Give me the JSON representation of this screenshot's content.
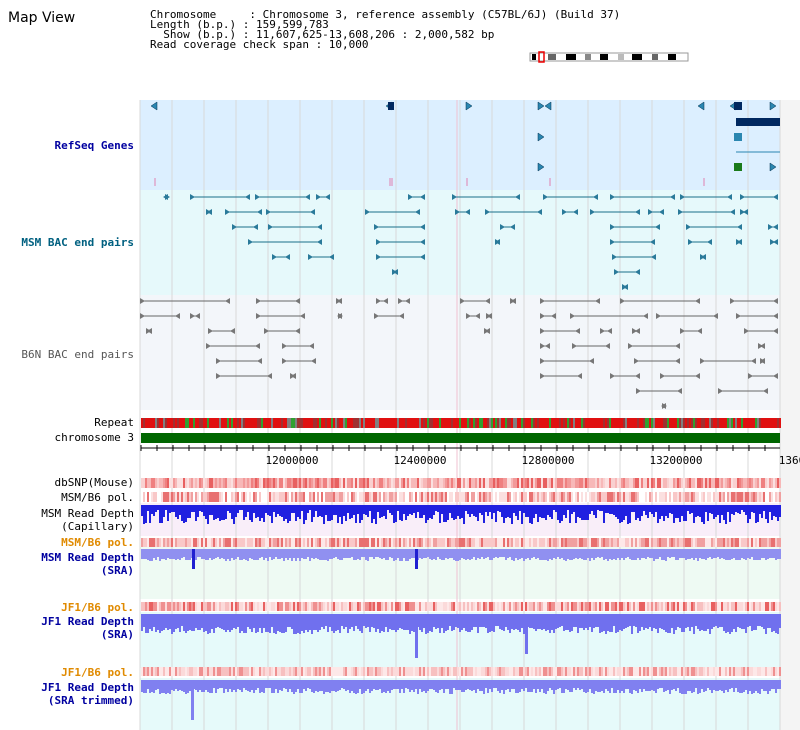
{
  "header": {
    "title": "Map View",
    "info_lines": [
      "Chromosome     : Chromosome 3, reference assembly (C57BL/6J) (Build 37)",
      "Length (b.p.) : 159,599,783",
      "  Show (b.p.) : 11,607,625-13,608,206 : 2,000,582 bp",
      "Read coverage check span : 10,000"
    ]
  },
  "tracks": {
    "refseq": "RefSeq Genes",
    "msm_bac": "MSM BAC end pairs",
    "b6n_bac": "B6N BAC end pairs",
    "repeat": "Repeat",
    "chromosome": "chromosome 3",
    "dbsnp": "dbSNP(Mouse)",
    "msm_b6_pol": "MSM/B6 pol.",
    "msm_read_depth_cap_1": "MSM Read Depth",
    "msm_read_depth_cap_2": "(Capillary)",
    "msm_b6_pol_2": "MSM/B6 pol.",
    "msm_read_depth_sra_1": "MSM Read Depth",
    "msm_read_depth_sra_2": "(SRA)",
    "jf1_b6_pol": "JF1/B6 pol.",
    "jf1_read_depth_sra_1": "JF1 Read Depth",
    "jf1_read_depth_sra_2": "(SRA)",
    "jf1_b6_pol_2": "JF1/B6 pol.",
    "jf1_read_depth_trim_1": "JF1 Read Depth",
    "jf1_read_depth_trim_2": "(SRA trimmed)"
  },
  "axis": {
    "ticks": [
      "12000000",
      "12400000",
      "12800000",
      "13200000",
      "1360"
    ]
  },
  "colors": {
    "refseq_bg": "#dcefff",
    "bac_bg": "#e6f9fb",
    "b6n_bg": "#f3f6fa",
    "depth_bg": "#f9eef9",
    "sra_bg": "#eefaf3",
    "jf1_bg": "#e6fafa",
    "label_navy": "#0000a0",
    "label_orange": "#e08a00",
    "label_teal": "#006080",
    "chrom_green": "#006600"
  }
}
